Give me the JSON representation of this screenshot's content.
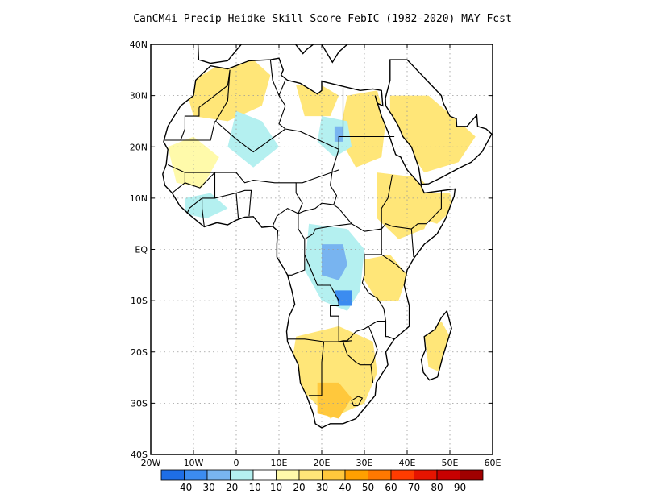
{
  "title": "CanCM4i Precip Heidke Skill Score FebIC (1982-2020) MAY Fcst",
  "map": {
    "lon_range": [
      -20,
      60
    ],
    "lat_range": [
      -40,
      40
    ],
    "grid": true,
    "y_ticks": [
      {
        "value": 40,
        "label": "40N"
      },
      {
        "value": 30,
        "label": "30N"
      },
      {
        "value": 20,
        "label": "20N"
      },
      {
        "value": 10,
        "label": "10N"
      },
      {
        "value": 0,
        "label": "EQ"
      },
      {
        "value": -10,
        "label": "10S"
      },
      {
        "value": -20,
        "label": "20S"
      },
      {
        "value": -30,
        "label": "30S"
      },
      {
        "value": -40,
        "label": "40S"
      }
    ],
    "x_ticks": [
      {
        "value": -20,
        "label": "20W"
      },
      {
        "value": -10,
        "label": "10W"
      },
      {
        "value": 0,
        "label": "0"
      },
      {
        "value": 10,
        "label": "10E"
      },
      {
        "value": 20,
        "label": "20E"
      },
      {
        "value": 30,
        "label": "30E"
      },
      {
        "value": 40,
        "label": "40E"
      },
      {
        "value": 50,
        "label": "50E"
      },
      {
        "value": 60,
        "label": "60E"
      }
    ]
  },
  "colorbar": {
    "colors": [
      "#1e6ee6",
      "#3c8cf0",
      "#78b4f0",
      "#b4f0f0",
      "#ffffff",
      "#fffaaa",
      "#ffe678",
      "#ffc83c",
      "#ffa000",
      "#ff7800",
      "#ff3c00",
      "#e61400",
      "#c80000",
      "#a00000"
    ],
    "labels": [
      "-40",
      "-30",
      "-20",
      "-10",
      "10",
      "20",
      "30",
      "40",
      "50",
      "60",
      "70",
      "80",
      "90"
    ]
  },
  "skill_regions": [
    {
      "name": "morocco-high",
      "level": 30,
      "points": [
        [
          -9,
          33
        ],
        [
          -6,
          35
        ],
        [
          -3,
          34
        ],
        [
          -2,
          31
        ],
        [
          -5,
          29
        ],
        [
          -8,
          30
        ]
      ]
    },
    {
      "name": "north-africa-low",
      "level": 20,
      "points": [
        [
          -12,
          32
        ],
        [
          -4,
          36
        ],
        [
          4,
          37
        ],
        [
          8,
          34
        ],
        [
          6,
          28
        ],
        [
          -2,
          25
        ],
        [
          -10,
          26
        ]
      ]
    },
    {
      "name": "libya-moderate",
      "level": 20,
      "points": [
        [
          14,
          32
        ],
        [
          20,
          32
        ],
        [
          24,
          30
        ],
        [
          22,
          26
        ],
        [
          16,
          26
        ]
      ]
    },
    {
      "name": "egypt-sudan-low",
      "level": 20,
      "points": [
        [
          26,
          30
        ],
        [
          33,
          31
        ],
        [
          35,
          25
        ],
        [
          34,
          18
        ],
        [
          28,
          16
        ],
        [
          24,
          22
        ]
      ]
    },
    {
      "name": "ethiopia-high",
      "level": 40,
      "points": [
        [
          36,
          14
        ],
        [
          41,
          13
        ],
        [
          43,
          9
        ],
        [
          40,
          5
        ],
        [
          36,
          6
        ],
        [
          34,
          10
        ]
      ]
    },
    {
      "name": "ethiopia-low",
      "level": 20,
      "points": [
        [
          33,
          15
        ],
        [
          43,
          14
        ],
        [
          47,
          10
        ],
        [
          44,
          4
        ],
        [
          38,
          2
        ],
        [
          33,
          6
        ]
      ]
    },
    {
      "name": "arabia-low",
      "level": 20,
      "points": [
        [
          36,
          30
        ],
        [
          45,
          30
        ],
        [
          52,
          25
        ],
        [
          56,
          22
        ],
        [
          52,
          17
        ],
        [
          44,
          15
        ],
        [
          40,
          20
        ],
        [
          36,
          26
        ]
      ]
    },
    {
      "name": "somalia-low",
      "level": 20,
      "points": [
        [
          44,
          11
        ],
        [
          50,
          11
        ],
        [
          51,
          8
        ],
        [
          47,
          5
        ],
        [
          43,
          6
        ]
      ]
    },
    {
      "name": "sahel-west-low",
      "level": 10,
      "points": [
        [
          -16,
          20
        ],
        [
          -10,
          22
        ],
        [
          -4,
          18
        ],
        [
          -8,
          12
        ],
        [
          -14,
          13
        ]
      ]
    },
    {
      "name": "east-africa-low",
      "level": 20,
      "points": [
        [
          30,
          -2
        ],
        [
          36,
          -1
        ],
        [
          40,
          -5
        ],
        [
          38,
          -10
        ],
        [
          33,
          -10
        ],
        [
          30,
          -6
        ]
      ]
    },
    {
      "name": "southern-africa-low",
      "level": 20,
      "points": [
        [
          14,
          -17
        ],
        [
          24,
          -15
        ],
        [
          32,
          -18
        ],
        [
          33,
          -24
        ],
        [
          30,
          -30
        ],
        [
          22,
          -33
        ],
        [
          16,
          -28
        ],
        [
          13,
          -22
        ]
      ]
    },
    {
      "name": "south-africa-moderate",
      "level": 30,
      "points": [
        [
          19,
          -26
        ],
        [
          24,
          -26
        ],
        [
          27,
          -29
        ],
        [
          24,
          -33
        ],
        [
          19,
          -32
        ]
      ]
    },
    {
      "name": "madagascar-low",
      "level": 20,
      "points": [
        [
          44,
          -16
        ],
        [
          48,
          -14
        ],
        [
          50,
          -17
        ],
        [
          48,
          -24
        ],
        [
          45,
          -23
        ]
      ]
    },
    {
      "name": "sahara-central-neg",
      "level": -10,
      "points": [
        [
          0,
          27
        ],
        [
          6,
          25
        ],
        [
          10,
          20
        ],
        [
          4,
          16
        ],
        [
          -2,
          20
        ]
      ]
    },
    {
      "name": "chad-neg",
      "level": -10,
      "points": [
        [
          20,
          26
        ],
        [
          26,
          25
        ],
        [
          27,
          20
        ],
        [
          23,
          18
        ],
        [
          19,
          21
        ]
      ]
    },
    {
      "name": "egypt-neg",
      "level": -20,
      "points": [
        [
          23,
          24
        ],
        [
          25,
          24
        ],
        [
          25,
          21
        ],
        [
          23,
          21
        ]
      ]
    },
    {
      "name": "west-africa-neg",
      "level": -10,
      "points": [
        [
          -12,
          10
        ],
        [
          -6,
          11
        ],
        [
          -2,
          8
        ],
        [
          -7,
          6
        ],
        [
          -12,
          7
        ]
      ]
    },
    {
      "name": "central-africa-neg",
      "level": -10,
      "points": [
        [
          17,
          5
        ],
        [
          26,
          4
        ],
        [
          30,
          0
        ],
        [
          29,
          -8
        ],
        [
          26,
          -12
        ],
        [
          20,
          -10
        ],
        [
          16,
          -4
        ]
      ]
    },
    {
      "name": "congo-neg-mid",
      "level": -20,
      "points": [
        [
          20,
          1
        ],
        [
          25,
          1
        ],
        [
          26,
          -3
        ],
        [
          24,
          -6
        ],
        [
          20,
          -5
        ]
      ]
    },
    {
      "name": "congo-neg-strong",
      "level": -30,
      "points": [
        [
          23,
          -8
        ],
        [
          27,
          -8
        ],
        [
          27,
          -11
        ],
        [
          24,
          -11
        ]
      ]
    }
  ]
}
